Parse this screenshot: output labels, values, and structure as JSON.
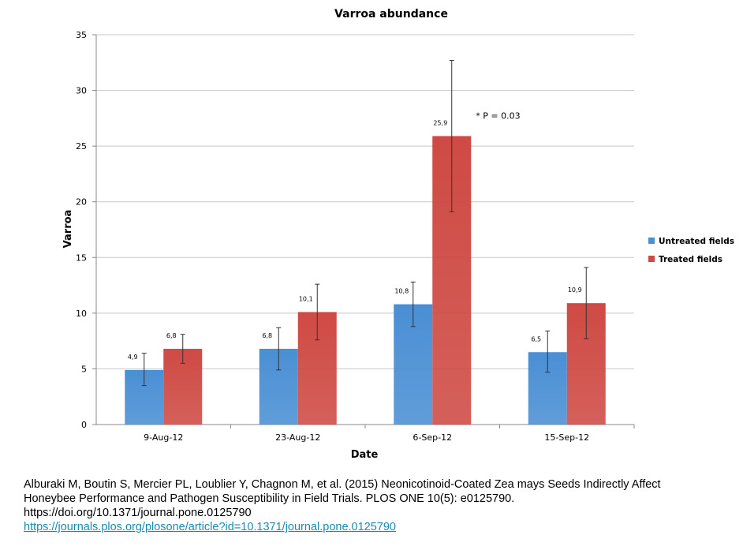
{
  "colors": {
    "untreated": "#4a8fd4",
    "treated": "#cf4a44",
    "grid": "#c8c8c8",
    "link": "#1a8ab0"
  },
  "chart_data": {
    "type": "bar",
    "title": "Varroa abundance",
    "xlabel": "Date",
    "ylabel": "Varroa",
    "ylim": [
      0,
      35
    ],
    "yticks": [
      "0",
      "5",
      "10",
      "15",
      "20",
      "25",
      "30",
      "35"
    ],
    "grid": true,
    "legend_position": "right",
    "categories": [
      "9-Aug-12",
      "23-Aug-12",
      "6-Sep-12",
      "15-Sep-12"
    ],
    "series": [
      {
        "name": "Untreated fields",
        "values": [
          4.9,
          6.8,
          10.8,
          6.5
        ],
        "labels": [
          "4,9",
          "6,8",
          "10,8",
          "6,5"
        ],
        "err_low": [
          3.5,
          4.9,
          8.8,
          4.7
        ],
        "err_high": [
          6.4,
          8.7,
          12.8,
          8.4
        ]
      },
      {
        "name": "Treated fields",
        "values": [
          6.8,
          10.1,
          25.9,
          10.9
        ],
        "labels": [
          "6,8",
          "10,1",
          "25,9",
          "10,9"
        ],
        "err_low": [
          5.5,
          7.6,
          19.1,
          7.7
        ],
        "err_high": [
          8.1,
          12.6,
          32.7,
          14.1
        ]
      }
    ],
    "annotation": "* P = 0.03"
  },
  "citation": {
    "line1": "Alburaki M, Boutin S, Mercier PL, Loublier Y, Chagnon M, et al. (2015) Neonicotinoid-Coated Zea mays Seeds Indirectly Affect",
    "line2": "Honeybee Performance and Pathogen Susceptibility in Field Trials. PLOS ONE 10(5): e0125790.",
    "doi": "https://doi.org/10.1371/journal.pone.0125790",
    "url": "https://journals.plos.org/plosone/article?id=10.1371/journal.pone.0125790"
  }
}
